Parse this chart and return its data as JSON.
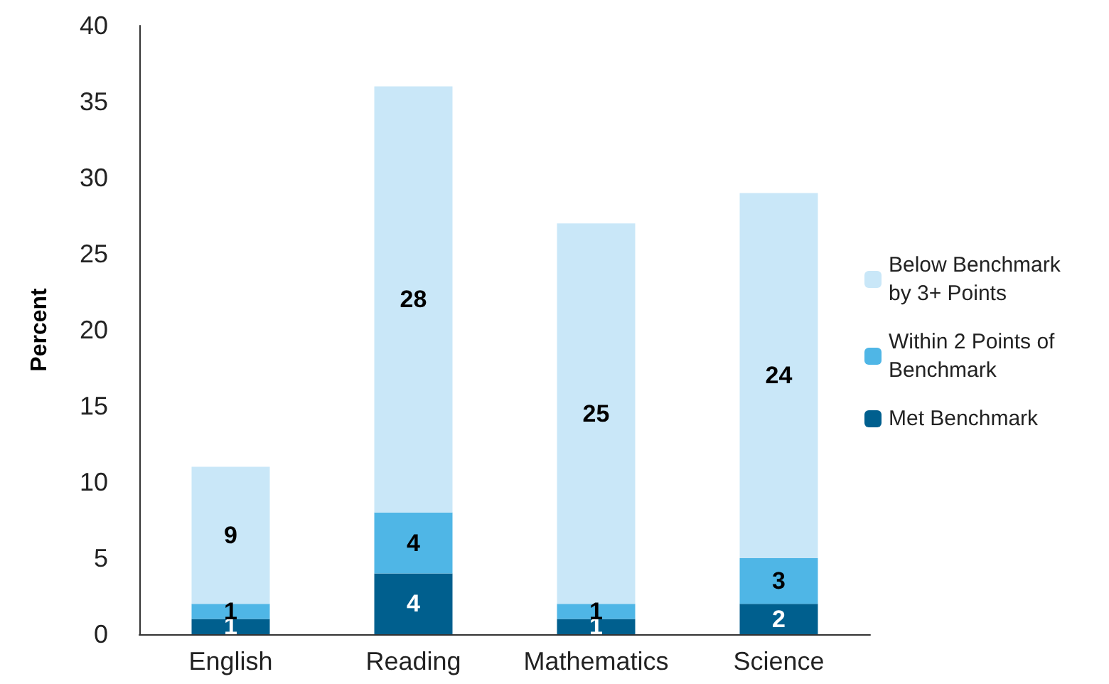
{
  "chart_data": {
    "type": "bar",
    "stacked": true,
    "ylabel": "Percent",
    "categories": [
      "English",
      "Reading",
      "Mathematics",
      "Science"
    ],
    "series": [
      {
        "name": "Met Benchmark",
        "color": "#005f8e",
        "values": [
          1,
          4,
          1,
          2
        ]
      },
      {
        "name": "Within 2 Points of Benchmark",
        "color": "#4fb6e6",
        "values": [
          1,
          4,
          1,
          3
        ]
      },
      {
        "name": "Below Benchmark by 3+ Points",
        "color": "#c9e7f8",
        "values": [
          9,
          28,
          25,
          24
        ]
      }
    ],
    "ylim": [
      0,
      40
    ],
    "yticks": [
      0,
      5,
      10,
      15,
      20,
      25,
      30,
      35,
      40
    ],
    "grid": false,
    "legend": "right",
    "data_labels": true
  }
}
